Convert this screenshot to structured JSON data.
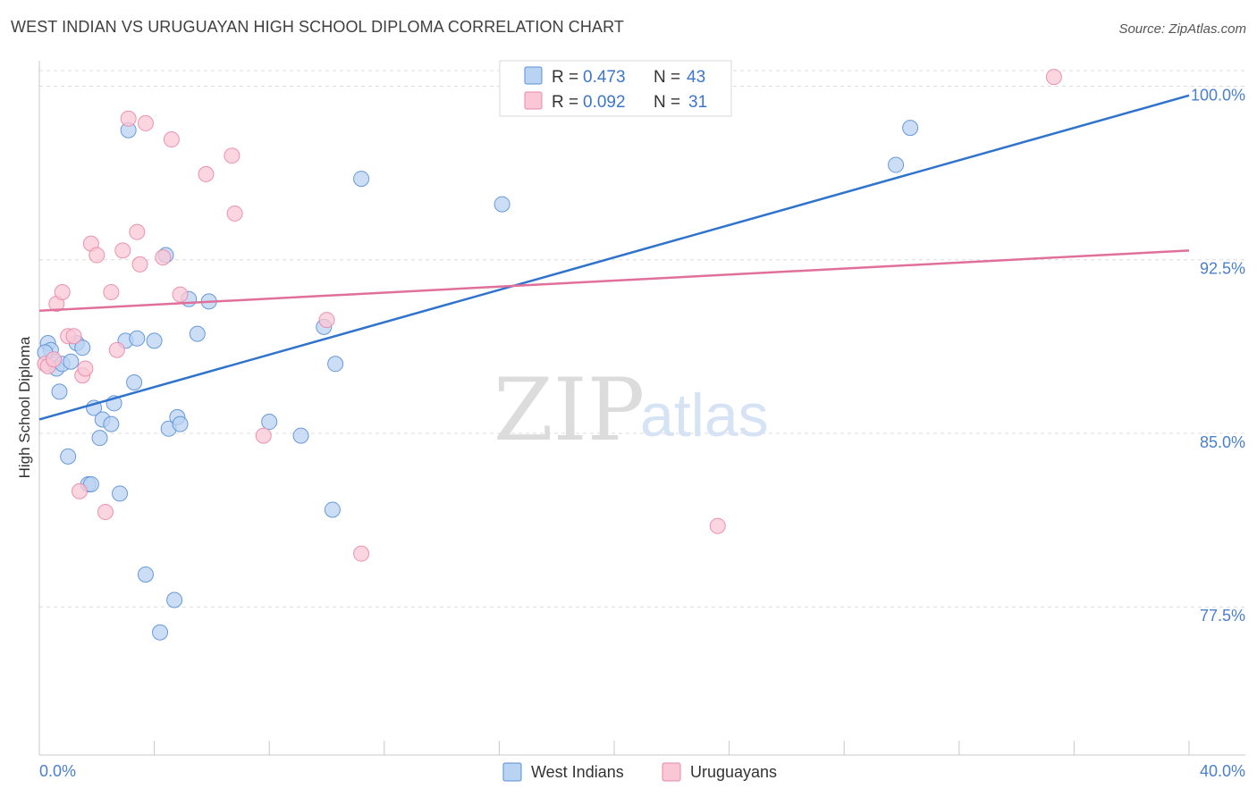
{
  "header": {
    "title": "WEST INDIAN VS URUGUAYAN HIGH SCHOOL DIPLOMA CORRELATION CHART",
    "source": "Source: ZipAtlas.com"
  },
  "watermark": {
    "zip": "ZIP",
    "atlas": "atlas"
  },
  "legend_top": {
    "rows": [
      {
        "r_label": "R =",
        "r_value": "0.473",
        "n_label": "N =",
        "n_value": "43"
      },
      {
        "r_label": "R =",
        "r_value": "0.092",
        "n_label": "N =",
        "n_value": "31"
      }
    ]
  },
  "legend_bottom": {
    "items": [
      {
        "label": "West Indians"
      },
      {
        "label": "Uruguayans"
      }
    ]
  },
  "colors": {
    "blue_fill": "#b9d3f3",
    "blue_stroke": "#5b8fd6",
    "blue_line": "#2f73cc",
    "pink_fill": "#f9c7d6",
    "pink_stroke": "#e88aa8",
    "pink_line": "#e0709a",
    "grid": "#dcdcdc",
    "axis_text": "#4a7fcf"
  },
  "chart_data": {
    "type": "scatter",
    "title": "WEST INDIAN VS URUGUAYAN HIGH SCHOOL DIPLOMA CORRELATION CHART",
    "xlabel": "",
    "ylabel": "High School Diploma",
    "xlim": [
      0,
      40
    ],
    "ylim": [
      71.1,
      101.1
    ],
    "x_tick_labels": [
      "0.0%",
      "40.0%"
    ],
    "y_ticks": [
      77.5,
      85.0,
      92.5,
      100.0
    ],
    "y_tick_labels": [
      "77.5%",
      "85.0%",
      "92.5%",
      "100.0%"
    ],
    "grid": true,
    "legend_position": "top-center",
    "series": [
      {
        "name": "West Indians",
        "R": 0.473,
        "N": 43,
        "trend": {
          "x": [
            0,
            40
          ],
          "y": [
            85.6,
            99.6
          ]
        },
        "points": [
          [
            0.3,
            88.9
          ],
          [
            0.4,
            88.6
          ],
          [
            0.5,
            88.1
          ],
          [
            0.6,
            87.8
          ],
          [
            0.7,
            86.8
          ],
          [
            0.8,
            88.0
          ],
          [
            1.0,
            84.0
          ],
          [
            1.1,
            88.1
          ],
          [
            1.3,
            88.9
          ],
          [
            1.5,
            88.7
          ],
          [
            1.7,
            82.8
          ],
          [
            1.8,
            82.8
          ],
          [
            1.9,
            86.1
          ],
          [
            2.1,
            84.8
          ],
          [
            2.2,
            85.6
          ],
          [
            2.5,
            85.4
          ],
          [
            2.6,
            86.3
          ],
          [
            2.8,
            82.4
          ],
          [
            3.0,
            89.0
          ],
          [
            3.1,
            98.1
          ],
          [
            3.3,
            87.2
          ],
          [
            3.4,
            89.1
          ],
          [
            3.7,
            78.9
          ],
          [
            4.0,
            89.0
          ],
          [
            4.2,
            76.4
          ],
          [
            4.4,
            92.7
          ],
          [
            4.5,
            85.2
          ],
          [
            4.7,
            77.8
          ],
          [
            4.8,
            85.7
          ],
          [
            4.9,
            85.4
          ],
          [
            5.2,
            90.8
          ],
          [
            5.5,
            89.3
          ],
          [
            5.9,
            90.7
          ],
          [
            8.0,
            85.5
          ],
          [
            9.1,
            84.9
          ],
          [
            9.9,
            89.6
          ],
          [
            10.2,
            81.7
          ],
          [
            10.3,
            88.0
          ],
          [
            11.2,
            96.0
          ],
          [
            16.1,
            94.9
          ],
          [
            29.8,
            96.6
          ],
          [
            30.3,
            98.2
          ],
          [
            0.2,
            88.5
          ]
        ]
      },
      {
        "name": "Uruguayans",
        "R": 0.092,
        "N": 31,
        "trend": {
          "x": [
            0,
            40
          ],
          "y": [
            90.3,
            92.9
          ]
        },
        "points": [
          [
            0.2,
            88.0
          ],
          [
            0.3,
            87.9
          ],
          [
            0.5,
            88.2
          ],
          [
            0.6,
            90.6
          ],
          [
            0.8,
            91.1
          ],
          [
            1.0,
            89.2
          ],
          [
            1.2,
            89.2
          ],
          [
            1.4,
            82.5
          ],
          [
            1.5,
            87.5
          ],
          [
            1.6,
            87.8
          ],
          [
            1.8,
            93.2
          ],
          [
            2.0,
            92.7
          ],
          [
            2.3,
            81.6
          ],
          [
            2.5,
            91.1
          ],
          [
            2.7,
            88.6
          ],
          [
            2.9,
            92.9
          ],
          [
            3.1,
            98.6
          ],
          [
            3.4,
            93.7
          ],
          [
            3.5,
            92.3
          ],
          [
            3.7,
            98.4
          ],
          [
            4.3,
            92.6
          ],
          [
            4.6,
            97.7
          ],
          [
            4.9,
            91.0
          ],
          [
            5.8,
            96.2
          ],
          [
            6.7,
            97.0
          ],
          [
            6.8,
            94.5
          ],
          [
            7.8,
            84.9
          ],
          [
            10.0,
            89.9
          ],
          [
            11.2,
            79.8
          ],
          [
            23.6,
            81.0
          ],
          [
            35.3,
            100.4
          ]
        ]
      }
    ]
  }
}
